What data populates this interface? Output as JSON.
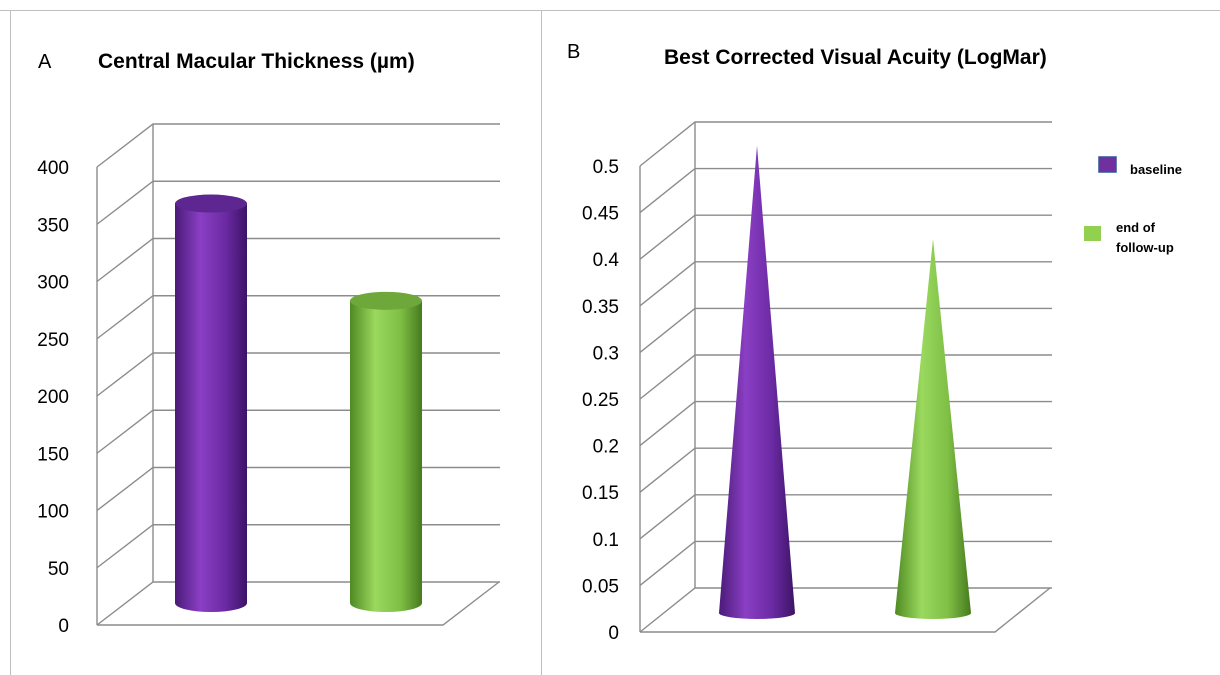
{
  "panels": {
    "a_letter": "A",
    "b_letter": "B"
  },
  "legend": {
    "items": [
      {
        "label": "baseline",
        "color": "#7030a0"
      },
      {
        "label": "end of follow-up",
        "label_lines": [
          "end of",
          "follow-up"
        ],
        "color": "#92d050"
      }
    ]
  },
  "chart_data": [
    {
      "type": "bar",
      "style": "3d-cylinder",
      "title": "Central Macular Thickness  (µm)",
      "xlabel": "",
      "ylabel": "",
      "ylim": [
        0,
        400
      ],
      "yticks": [
        0,
        50,
        100,
        150,
        200,
        250,
        300,
        350,
        400
      ],
      "ytick_labels": [
        "0",
        "50",
        "100",
        "150",
        "200",
        "250",
        "300",
        "350",
        "400"
      ],
      "grid": true,
      "categories": [
        ""
      ],
      "series": [
        {
          "name": "baseline",
          "color": "#7030a0",
          "values": [
            385
          ]
        },
        {
          "name": "end of follow-up",
          "color": "#92d050",
          "values": [
            300
          ]
        }
      ]
    },
    {
      "type": "bar",
      "style": "3d-cone",
      "title": "Best Corrected Visual Acuity (LogMar)",
      "xlabel": "",
      "ylabel": "",
      "ylim": [
        0,
        0.5
      ],
      "yticks": [
        0,
        0.05,
        0.1,
        0.15,
        0.2,
        0.25,
        0.3,
        0.35,
        0.4,
        0.45,
        0.5
      ],
      "ytick_labels": [
        "0",
        "0.05",
        "0.1",
        "0.15",
        "0.2",
        "0.25",
        "0.3",
        "0.35",
        "0.4",
        "0.45",
        "0.5"
      ],
      "grid": true,
      "legend_position": "right",
      "categories": [
        ""
      ],
      "series": [
        {
          "name": "baseline",
          "color": "#7030a0",
          "values": [
            0.51
          ]
        },
        {
          "name": "end of follow-up",
          "color": "#92d050",
          "values": [
            0.41
          ]
        }
      ]
    }
  ]
}
